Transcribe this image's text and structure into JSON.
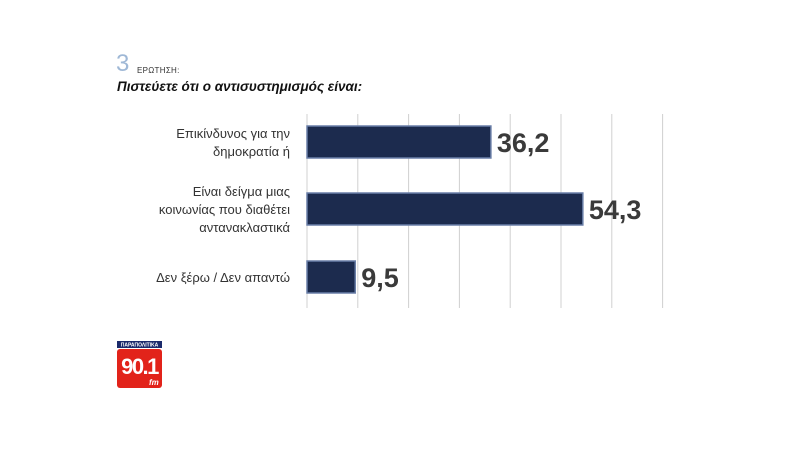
{
  "header": {
    "question_number": "3",
    "question_label": "ΕΡΩΤΗΣΗ:",
    "question_text": "Πιστεύετε ότι ο αντισυστημισμός είναι:"
  },
  "logo": {
    "top_text": "ΠΑΡΑΠΟΛΙΤΙΚΑ",
    "number": "90.1",
    "suffix": "fm",
    "brand_color": "#e2231a"
  },
  "colors": {
    "bar_fill": "#1c2b4e",
    "bar_edge": "#6a7fa8",
    "grid": "#d0d0d0"
  },
  "chart_data": {
    "type": "bar",
    "orientation": "horizontal",
    "categories": [
      [
        "Επικίνδυνος για την",
        "δημοκρατία ή"
      ],
      [
        "Είναι δείγμα μιας",
        "κοινωνίας που διαθέτει",
        "αντανακλαστικά"
      ],
      [
        "Δεν ξέρω / Δεν απαντώ"
      ]
    ],
    "values": [
      36.2,
      54.3,
      9.5
    ],
    "value_labels": [
      "36,2",
      "54,3",
      "9,5"
    ],
    "xlim": [
      0,
      100
    ],
    "grid": true
  }
}
